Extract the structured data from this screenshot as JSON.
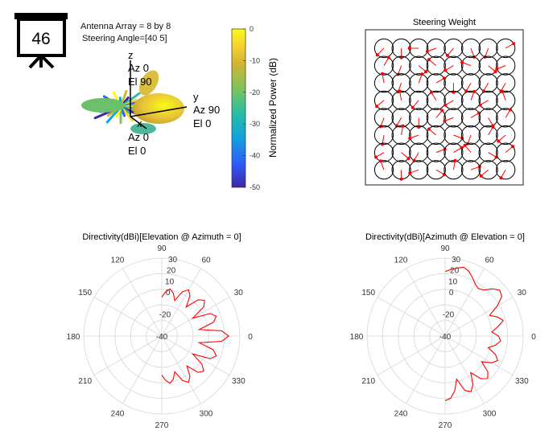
{
  "slide_number": "46",
  "pattern3d": {
    "annotation_line1": "Antenna Array = 8 by 8",
    "annotation_line2": "Steering Angle=[40 5]",
    "axis_z": {
      "name": "z",
      "az": "Az 0",
      "el": "El 90"
    },
    "axis_y": {
      "name": "y",
      "az": "Az 90",
      "el": "El 0"
    },
    "axis_x": {
      "name": "x",
      "az": "Az 0",
      "el": "El 0"
    }
  },
  "colorbar": {
    "label": "Normalized Power (dB)",
    "ticks": [
      "0",
      "-10",
      "-20",
      "-30",
      "-40",
      "-50"
    ],
    "range": [
      -50,
      0
    ],
    "colormap": [
      "#3e26a8",
      "#2d5dfb",
      "#11a4dc",
      "#2bbfa0",
      "#7cc35e",
      "#d2b42f",
      "#f8d430",
      "#f9fb15"
    ]
  },
  "chart_data": [
    {
      "type": "scatter",
      "title": "Steering Weight",
      "grid_size": [
        8,
        8
      ],
      "element_color": "#000000",
      "marker_color": "#ff0000",
      "weight_phase_deg": [
        [
          225,
          270,
          180,
          200,
          230,
          290,
          250,
          30
        ],
        [
          60,
          250,
          320,
          140,
          210,
          160,
          320,
          200
        ],
        [
          100,
          250,
          70,
          30,
          270,
          240,
          240,
          240
        ],
        [
          220,
          100,
          230,
          120,
          210,
          70,
          210,
          110
        ],
        [
          250,
          240,
          270,
          50,
          200,
          30,
          300,
          60
        ],
        [
          260,
          80,
          200,
          140,
          340,
          250,
          60,
          220
        ],
        [
          210,
          320,
          240,
          20,
          30,
          130,
          330,
          40
        ],
        [
          110,
          270,
          200,
          330,
          80,
          20,
          220,
          240
        ]
      ]
    },
    {
      "type": "line",
      "subtype": "polar",
      "title": "Directivity(dBi)[Elevation @ Azimuth = 0]",
      "angle_ticks": [
        "0",
        "30",
        "60",
        "90",
        "120",
        "150",
        "180",
        "210",
        "240",
        "270",
        "300",
        "330"
      ],
      "radial_ticks": [
        "30",
        "20",
        "10",
        "0",
        "-20",
        "-40"
      ],
      "rlim": [
        -40,
        30
      ],
      "color": "#ff0000",
      "series": [
        {
          "angle_deg": [
            -90,
            -85,
            -80,
            -75,
            -70,
            -65,
            -60,
            -55,
            -50,
            -45,
            -40,
            -35,
            -30,
            -25,
            -20,
            -15,
            -10,
            -5,
            0,
            5,
            10,
            15,
            20,
            25,
            30,
            35,
            40,
            45,
            50,
            55,
            60,
            65,
            70,
            75,
            80,
            85,
            90
          ],
          "directivity_dbi": [
            -5,
            0,
            3,
            0,
            -6,
            4,
            8,
            4,
            -5,
            6,
            9,
            4,
            -8,
            8,
            12,
            8,
            -6,
            14,
            20,
            14,
            -6,
            8,
            12,
            8,
            -8,
            6,
            10,
            6,
            -6,
            4,
            8,
            4,
            -6,
            0,
            3,
            0,
            -5
          ]
        }
      ]
    },
    {
      "type": "line",
      "subtype": "polar",
      "title": "Directivity(dBi)[Azimuth @ Elevation = 0]",
      "angle_ticks": [
        "0",
        "30",
        "60",
        "90",
        "120",
        "150",
        "180",
        "210",
        "240",
        "270",
        "300",
        "330"
      ],
      "radial_ticks": [
        "30",
        "20",
        "10",
        "0",
        "-20",
        "-40"
      ],
      "rlim": [
        -40,
        30
      ],
      "color": "#ff0000",
      "series": [
        {
          "angle_deg": [
            -90,
            -85,
            -80,
            -75,
            -70,
            -65,
            -60,
            -55,
            -50,
            -45,
            -40,
            -35,
            -30,
            -25,
            -20,
            -15,
            -10,
            -5,
            0,
            5,
            10,
            15,
            20,
            25,
            30,
            35,
            40,
            45,
            50,
            55,
            60,
            65,
            70,
            75,
            80,
            85,
            90
          ],
          "directivity_dbi": [
            18,
            16,
            10,
            0,
            12,
            15,
            10,
            0,
            10,
            14,
            10,
            0,
            8,
            12,
            8,
            0,
            6,
            10,
            8,
            2,
            8,
            14,
            10,
            4,
            14,
            22,
            24,
            20,
            14,
            12,
            14,
            18,
            22,
            24,
            22,
            20,
            18
          ]
        }
      ]
    }
  ]
}
